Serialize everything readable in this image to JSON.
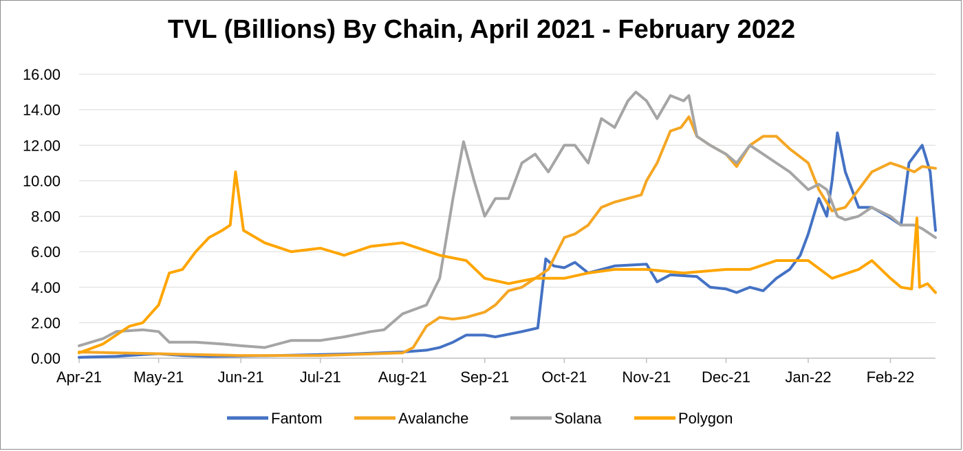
{
  "chart_data": {
    "type": "line",
    "title": "TVL (Billions) By Chain, April 2021 - February 2022",
    "xlabel": "",
    "ylabel": "",
    "x_range": [
      "2021-04-01",
      "2022-02-18"
    ],
    "ylim": [
      0,
      16
    ],
    "y_ticks": [
      "0.00",
      "2.00",
      "4.00",
      "6.00",
      "8.00",
      "10.00",
      "12.00",
      "14.00",
      "16.00"
    ],
    "x_ticks": [
      {
        "label": "Apr-21",
        "date": "2021-04-01"
      },
      {
        "label": "May-21",
        "date": "2021-05-01"
      },
      {
        "label": "Jun-21",
        "date": "2021-06-01"
      },
      {
        "label": "Jul-21",
        "date": "2021-07-01"
      },
      {
        "label": "Aug-21",
        "date": "2021-08-01"
      },
      {
        "label": "Sep-21",
        "date": "2021-09-01"
      },
      {
        "label": "Oct-21",
        "date": "2021-10-01"
      },
      {
        "label": "Nov-21",
        "date": "2021-11-01"
      },
      {
        "label": "Dec-21",
        "date": "2021-12-01"
      },
      {
        "label": "Jan-22",
        "date": "2022-01-01"
      },
      {
        "label": "Feb-22",
        "date": "2022-02-01"
      }
    ],
    "grid": "horizontal",
    "legend": "bottom",
    "series": [
      {
        "name": "Fantom",
        "color": "#4472C4",
        "points": [
          [
            "2021-04-01",
            0.05
          ],
          [
            "2021-04-15",
            0.1
          ],
          [
            "2021-04-25",
            0.2
          ],
          [
            "2021-05-01",
            0.25
          ],
          [
            "2021-05-10",
            0.15
          ],
          [
            "2021-05-20",
            0.1
          ],
          [
            "2021-06-01",
            0.12
          ],
          [
            "2021-06-15",
            0.15
          ],
          [
            "2021-07-01",
            0.2
          ],
          [
            "2021-07-15",
            0.25
          ],
          [
            "2021-08-01",
            0.35
          ],
          [
            "2021-08-10",
            0.45
          ],
          [
            "2021-08-15",
            0.6
          ],
          [
            "2021-08-20",
            0.9
          ],
          [
            "2021-08-25",
            1.3
          ],
          [
            "2021-09-01",
            1.3
          ],
          [
            "2021-09-05",
            1.2
          ],
          [
            "2021-09-10",
            1.35
          ],
          [
            "2021-09-15",
            1.5
          ],
          [
            "2021-09-21",
            1.7
          ],
          [
            "2021-09-24",
            5.6
          ],
          [
            "2021-09-27",
            5.2
          ],
          [
            "2021-10-01",
            5.1
          ],
          [
            "2021-10-05",
            5.4
          ],
          [
            "2021-10-10",
            4.8
          ],
          [
            "2021-10-20",
            5.2
          ],
          [
            "2021-11-01",
            5.3
          ],
          [
            "2021-11-05",
            4.3
          ],
          [
            "2021-11-10",
            4.7
          ],
          [
            "2021-11-20",
            4.6
          ],
          [
            "2021-11-25",
            4.0
          ],
          [
            "2021-12-01",
            3.9
          ],
          [
            "2021-12-05",
            3.7
          ],
          [
            "2021-12-10",
            4.0
          ],
          [
            "2021-12-15",
            3.8
          ],
          [
            "2021-12-20",
            4.5
          ],
          [
            "2021-12-25",
            5.0
          ],
          [
            "2021-12-29",
            5.8
          ],
          [
            "2022-01-01",
            7.0
          ],
          [
            "2022-01-05",
            9.0
          ],
          [
            "2022-01-08",
            8.0
          ],
          [
            "2022-01-10",
            10.0
          ],
          [
            "2022-01-12",
            12.7
          ],
          [
            "2022-01-15",
            10.5
          ],
          [
            "2022-01-20",
            8.5
          ],
          [
            "2022-01-25",
            8.5
          ],
          [
            "2022-01-31",
            8.0
          ],
          [
            "2022-02-05",
            7.5
          ],
          [
            "2022-02-08",
            11.0
          ],
          [
            "2022-02-13",
            12.0
          ],
          [
            "2022-02-16",
            10.5
          ],
          [
            "2022-02-18",
            7.2
          ]
        ]
      },
      {
        "name": "Avalanche",
        "color": "#F5A623",
        "points": [
          [
            "2021-04-01",
            0.35
          ],
          [
            "2021-04-15",
            0.3
          ],
          [
            "2021-05-01",
            0.25
          ],
          [
            "2021-05-15",
            0.2
          ],
          [
            "2021-06-01",
            0.15
          ],
          [
            "2021-07-01",
            0.15
          ],
          [
            "2021-08-01",
            0.3
          ],
          [
            "2021-08-05",
            0.6
          ],
          [
            "2021-08-10",
            1.8
          ],
          [
            "2021-08-15",
            2.3
          ],
          [
            "2021-08-20",
            2.2
          ],
          [
            "2021-08-25",
            2.3
          ],
          [
            "2021-09-01",
            2.6
          ],
          [
            "2021-09-05",
            3.0
          ],
          [
            "2021-09-10",
            3.8
          ],
          [
            "2021-09-15",
            4.0
          ],
          [
            "2021-09-20",
            4.5
          ],
          [
            "2021-09-25",
            5.0
          ],
          [
            "2021-10-01",
            6.8
          ],
          [
            "2021-10-05",
            7.0
          ],
          [
            "2021-10-10",
            7.5
          ],
          [
            "2021-10-15",
            8.5
          ],
          [
            "2021-10-20",
            8.8
          ],
          [
            "2021-10-25",
            9.0
          ],
          [
            "2021-10-30",
            9.2
          ],
          [
            "2021-11-01",
            10.0
          ],
          [
            "2021-11-05",
            11.0
          ],
          [
            "2021-11-10",
            12.8
          ],
          [
            "2021-11-14",
            13.0
          ],
          [
            "2021-11-17",
            13.6
          ],
          [
            "2021-11-20",
            12.5
          ],
          [
            "2021-11-25",
            12.0
          ],
          [
            "2021-12-01",
            11.5
          ],
          [
            "2021-12-05",
            10.8
          ],
          [
            "2021-12-10",
            12.0
          ],
          [
            "2021-12-15",
            12.5
          ],
          [
            "2021-12-20",
            12.5
          ],
          [
            "2021-12-25",
            11.8
          ],
          [
            "2022-01-01",
            11.0
          ],
          [
            "2022-01-05",
            9.5
          ],
          [
            "2022-01-10",
            8.3
          ],
          [
            "2022-01-15",
            8.5
          ],
          [
            "2022-01-20",
            9.5
          ],
          [
            "2022-01-25",
            10.5
          ],
          [
            "2022-02-01",
            11.0
          ],
          [
            "2022-02-05",
            10.8
          ],
          [
            "2022-02-10",
            10.5
          ],
          [
            "2022-02-13",
            10.8
          ],
          [
            "2022-02-18",
            10.7
          ]
        ]
      },
      {
        "name": "Solana",
        "color": "#A5A5A5",
        "points": [
          [
            "2021-04-01",
            0.7
          ],
          [
            "2021-04-10",
            1.1
          ],
          [
            "2021-04-15",
            1.5
          ],
          [
            "2021-04-25",
            1.6
          ],
          [
            "2021-05-01",
            1.5
          ],
          [
            "2021-05-05",
            0.9
          ],
          [
            "2021-05-15",
            0.9
          ],
          [
            "2021-05-25",
            0.8
          ],
          [
            "2021-06-01",
            0.7
          ],
          [
            "2021-06-10",
            0.6
          ],
          [
            "2021-06-20",
            1.0
          ],
          [
            "2021-07-01",
            1.0
          ],
          [
            "2021-07-10",
            1.2
          ],
          [
            "2021-07-20",
            1.5
          ],
          [
            "2021-07-25",
            1.6
          ],
          [
            "2021-08-01",
            2.5
          ],
          [
            "2021-08-10",
            3.0
          ],
          [
            "2021-08-15",
            4.5
          ],
          [
            "2021-08-20",
            9.0
          ],
          [
            "2021-08-24",
            12.2
          ],
          [
            "2021-08-28",
            10.0
          ],
          [
            "2021-09-01",
            8.0
          ],
          [
            "2021-09-05",
            9.0
          ],
          [
            "2021-09-10",
            9.0
          ],
          [
            "2021-09-15",
            11.0
          ],
          [
            "2021-09-20",
            11.5
          ],
          [
            "2021-09-25",
            10.5
          ],
          [
            "2021-10-01",
            12.0
          ],
          [
            "2021-10-05",
            12.0
          ],
          [
            "2021-10-10",
            11.0
          ],
          [
            "2021-10-15",
            13.5
          ],
          [
            "2021-10-20",
            13.0
          ],
          [
            "2021-10-25",
            14.5
          ],
          [
            "2021-10-28",
            15.0
          ],
          [
            "2021-11-01",
            14.5
          ],
          [
            "2021-11-05",
            13.5
          ],
          [
            "2021-11-10",
            14.8
          ],
          [
            "2021-11-15",
            14.5
          ],
          [
            "2021-11-17",
            14.8
          ],
          [
            "2021-11-20",
            12.5
          ],
          [
            "2021-11-25",
            12.0
          ],
          [
            "2021-12-01",
            11.5
          ],
          [
            "2021-12-05",
            11.0
          ],
          [
            "2021-12-10",
            12.0
          ],
          [
            "2021-12-15",
            11.5
          ],
          [
            "2021-12-20",
            11.0
          ],
          [
            "2021-12-25",
            10.5
          ],
          [
            "2022-01-01",
            9.5
          ],
          [
            "2022-01-05",
            9.8
          ],
          [
            "2022-01-08",
            9.5
          ],
          [
            "2022-01-12",
            8.0
          ],
          [
            "2022-01-15",
            7.8
          ],
          [
            "2022-01-20",
            8.0
          ],
          [
            "2022-01-25",
            8.5
          ],
          [
            "2022-02-01",
            8.0
          ],
          [
            "2022-02-05",
            7.5
          ],
          [
            "2022-02-10",
            7.5
          ],
          [
            "2022-02-13",
            7.3
          ],
          [
            "2022-02-18",
            6.8
          ]
        ]
      },
      {
        "name": "Polygon",
        "color": "#FFA500",
        "points": [
          [
            "2021-04-01",
            0.3
          ],
          [
            "2021-04-10",
            0.8
          ],
          [
            "2021-04-15",
            1.3
          ],
          [
            "2021-04-20",
            1.8
          ],
          [
            "2021-04-25",
            2.0
          ],
          [
            "2021-05-01",
            3.0
          ],
          [
            "2021-05-05",
            4.8
          ],
          [
            "2021-05-10",
            5.0
          ],
          [
            "2021-05-15",
            6.0
          ],
          [
            "2021-05-20",
            6.8
          ],
          [
            "2021-05-25",
            7.2
          ],
          [
            "2021-05-28",
            7.5
          ],
          [
            "2021-05-30",
            10.5
          ],
          [
            "2021-06-02",
            7.2
          ],
          [
            "2021-06-10",
            6.5
          ],
          [
            "2021-06-20",
            6.0
          ],
          [
            "2021-07-01",
            6.2
          ],
          [
            "2021-07-10",
            5.8
          ],
          [
            "2021-07-20",
            6.3
          ],
          [
            "2021-08-01",
            6.5
          ],
          [
            "2021-08-15",
            5.8
          ],
          [
            "2021-08-25",
            5.5
          ],
          [
            "2021-09-01",
            4.5
          ],
          [
            "2021-09-10",
            4.2
          ],
          [
            "2021-09-20",
            4.5
          ],
          [
            "2021-10-01",
            4.5
          ],
          [
            "2021-10-10",
            4.8
          ],
          [
            "2021-10-20",
            5.0
          ],
          [
            "2021-11-01",
            5.0
          ],
          [
            "2021-11-15",
            4.8
          ],
          [
            "2021-12-01",
            5.0
          ],
          [
            "2021-12-10",
            5.0
          ],
          [
            "2021-12-20",
            5.5
          ],
          [
            "2022-01-01",
            5.5
          ],
          [
            "2022-01-10",
            4.5
          ],
          [
            "2022-01-20",
            5.0
          ],
          [
            "2022-01-25",
            5.5
          ],
          [
            "2022-02-01",
            4.5
          ],
          [
            "2022-02-05",
            4.0
          ],
          [
            "2022-02-09",
            3.9
          ],
          [
            "2022-02-11",
            7.9
          ],
          [
            "2022-02-12",
            4.0
          ],
          [
            "2022-02-15",
            4.2
          ],
          [
            "2022-02-18",
            3.7
          ]
        ]
      }
    ]
  }
}
